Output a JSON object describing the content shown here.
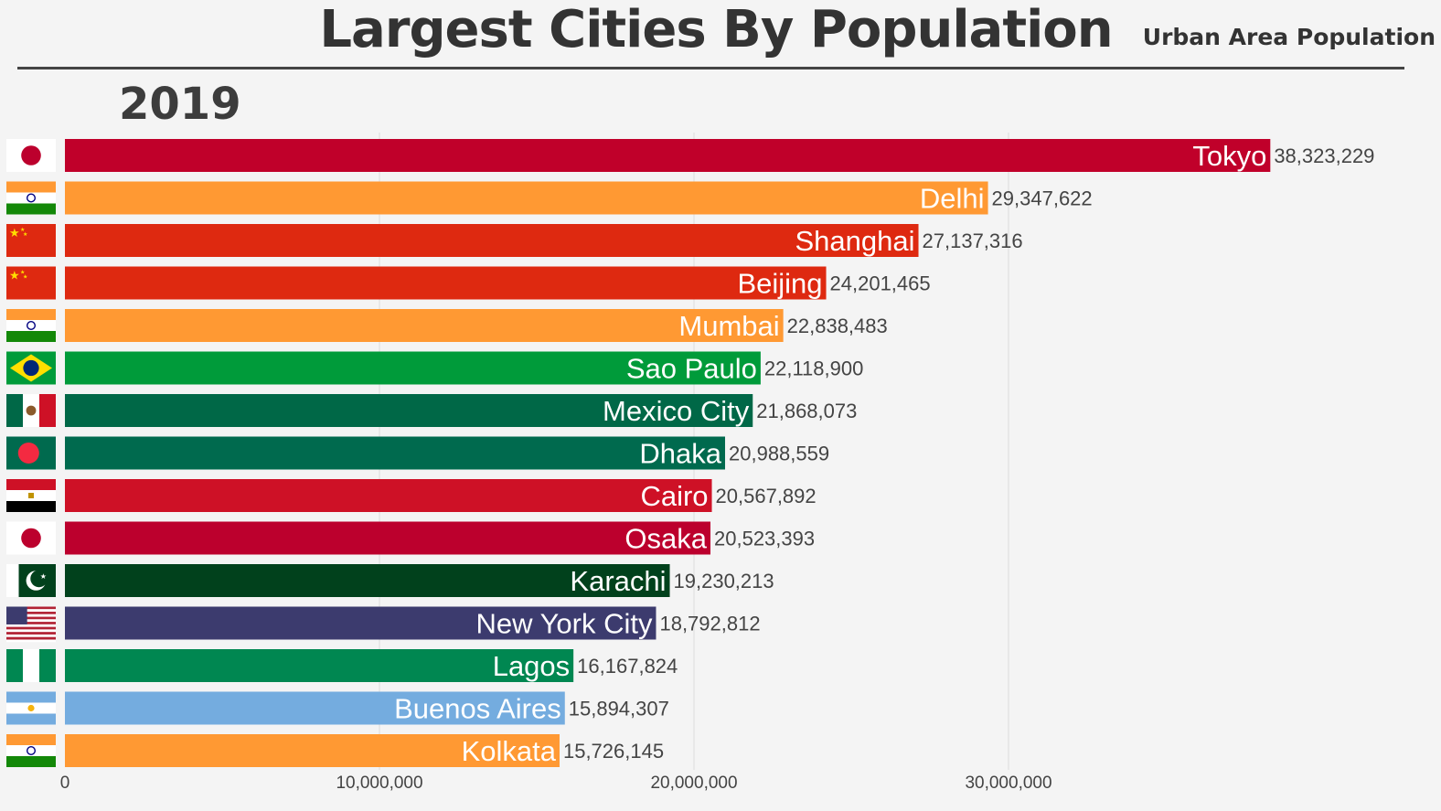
{
  "header": {
    "title": "Largest Cities By Population",
    "subtitle": "Urban Area Population",
    "year": "2019"
  },
  "chart_data": {
    "type": "bar",
    "orientation": "horizontal",
    "title": "Largest Cities By Population",
    "subtitle": "Urban Area Population",
    "period": "2019",
    "xlim": [
      0,
      41000000
    ],
    "x_ticks": [
      0,
      10000000,
      20000000,
      30000000
    ],
    "x_tick_labels": [
      "0",
      "10,000,000",
      "20,000,000",
      "30,000,000"
    ],
    "grid": "vertical",
    "categories": [
      "Tokyo",
      "Delhi",
      "Shanghai",
      "Beijing",
      "Mumbai",
      "Sao Paulo",
      "Mexico City",
      "Dhaka",
      "Cairo",
      "Osaka",
      "Karachi",
      "New York City",
      "Lagos",
      "Buenos Aires",
      "Kolkata"
    ],
    "values": [
      38323229,
      29347622,
      27137316,
      24201465,
      22838483,
      22118900,
      21868073,
      20988559,
      20567892,
      20523393,
      19230213,
      18792812,
      16167824,
      15894307,
      15726145
    ],
    "value_labels": [
      "38,323,229",
      "29,347,622",
      "27,137,316",
      "24,201,465",
      "22,838,483",
      "22,118,900",
      "21,868,073",
      "20,988,559",
      "20,567,892",
      "20,523,393",
      "19,230,213",
      "18,792,812",
      "16,167,824",
      "15,894,307",
      "15,726,145"
    ],
    "bar_colors": [
      "#c0002a",
      "#ff9933",
      "#de2910",
      "#de2910",
      "#ff9933",
      "#009b3a",
      "#006847",
      "#006a4e",
      "#ce1126",
      "#bc002d",
      "#01411c",
      "#3c3b6e",
      "#008751",
      "#74acdf",
      "#ff9933"
    ],
    "flags": [
      "japan-flag",
      "india-flag",
      "china-flag",
      "china-flag",
      "india-flag",
      "brazil-flag",
      "mexico-flag",
      "bangladesh-flag",
      "egypt-flag",
      "japan-flag",
      "pakistan-flag",
      "usa-flag",
      "nigeria-flag",
      "argentina-flag",
      "india-flag"
    ]
  }
}
